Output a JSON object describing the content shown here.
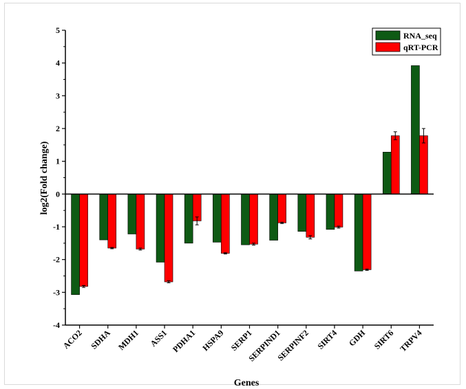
{
  "chart_data": {
    "type": "bar",
    "xlabel": "Genes",
    "ylabel": "log2(Fold change)",
    "ylim": [
      -4,
      5
    ],
    "yticks": [
      "-4",
      "-3",
      "-2",
      "-1",
      "0",
      "1",
      "2",
      "3",
      "4",
      "5"
    ],
    "categories": [
      "ACO2",
      "SDHA",
      "MDH1",
      "ASS1",
      "PDHA1",
      "HSPA9",
      "SERP1",
      "SERPIND1",
      "SERPINF2",
      "SIRT4",
      "GDH",
      "SIRT6",
      "TRPV4"
    ],
    "series": [
      {
        "name": "RNA_seq",
        "color": "#0e5a14",
        "values": [
          -3.07,
          -1.4,
          -1.22,
          -2.08,
          -1.5,
          -1.47,
          -1.55,
          -1.41,
          -1.14,
          -1.08,
          -2.35,
          1.28,
          3.92
        ]
      },
      {
        "name": "qRT-PCR",
        "color": "#ff0000",
        "values": [
          -2.82,
          -1.65,
          -1.68,
          -2.68,
          -0.82,
          -1.81,
          -1.53,
          -0.88,
          -1.32,
          -1.01,
          -2.31,
          1.78,
          1.78
        ],
        "errors": [
          0.03,
          0.02,
          0.03,
          0.03,
          0.12,
          0.02,
          0.03,
          0.02,
          0.05,
          0.03,
          0.02,
          0.12,
          0.22
        ]
      }
    ],
    "legend_position": "top-right",
    "grid": false
  }
}
